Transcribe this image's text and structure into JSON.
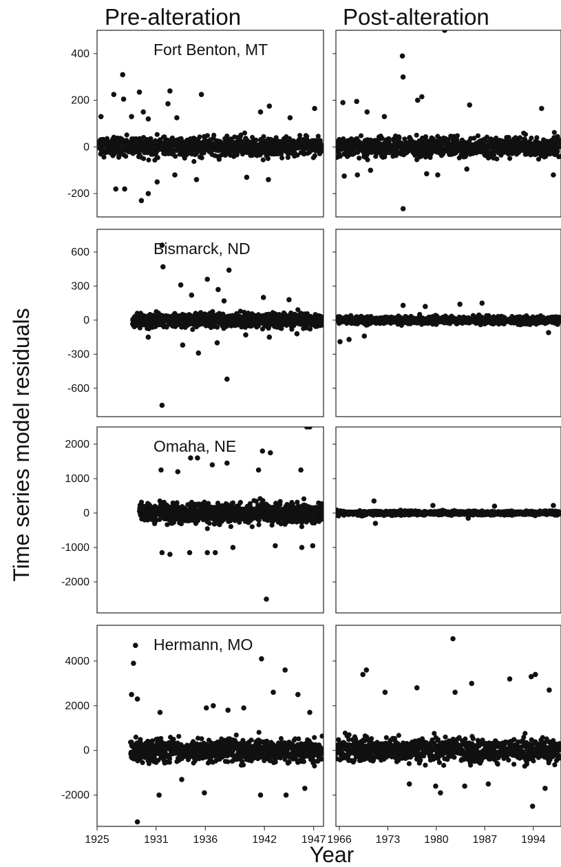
{
  "figure": {
    "left_title": "Pre-alteration",
    "right_title": "Post-alteration",
    "ylabel": "Time series model residuals",
    "xlabel": "Year"
  },
  "chart_data": [
    {
      "type": "scatter",
      "panel": "Fort Benton, MT (pre-alteration)",
      "station": "Fort Benton, MT",
      "period": "Pre-alteration",
      "xlim": [
        1925,
        1948
      ],
      "xticks": [],
      "ylim": [
        -300,
        500
      ],
      "yticks": [
        400,
        200,
        0,
        -200
      ],
      "data_range": [
        1925.2,
        1947.9
      ],
      "spread": 50,
      "outliers": [
        [
          1925.4,
          130
        ],
        [
          1926.7,
          225
        ],
        [
          1927.6,
          310
        ],
        [
          1927.7,
          205
        ],
        [
          1928.5,
          130
        ],
        [
          1929.3,
          235
        ],
        [
          1929.7,
          150
        ],
        [
          1930.2,
          120
        ],
        [
          1932.2,
          185
        ],
        [
          1932.4,
          240
        ],
        [
          1933.1,
          125
        ],
        [
          1935.6,
          225
        ],
        [
          1941.6,
          150
        ],
        [
          1942.5,
          175
        ],
        [
          1944.6,
          125
        ],
        [
          1947.1,
          165
        ],
        [
          1926.9,
          -180
        ],
        [
          1927.8,
          -180
        ],
        [
          1929.5,
          -230
        ],
        [
          1930.2,
          -200
        ],
        [
          1931.1,
          -150
        ],
        [
          1932.9,
          -120
        ],
        [
          1935.1,
          -140
        ],
        [
          1940.2,
          -130
        ],
        [
          1942.4,
          -140
        ]
      ]
    },
    {
      "type": "scatter",
      "panel": "Fort Benton, MT (post-alteration)",
      "station": "",
      "period": "Post-alteration",
      "xlim": [
        1965.5,
        1998
      ],
      "xticks": [],
      "ylim": [
        -300,
        500
      ],
      "yticks": [],
      "data_range": [
        1965.5,
        1997.9
      ],
      "spread": 50,
      "outliers": [
        [
          1966.5,
          190
        ],
        [
          1968.5,
          195
        ],
        [
          1970,
          150
        ],
        [
          1972.5,
          130
        ],
        [
          1975.1,
          390
        ],
        [
          1975.2,
          300
        ],
        [
          1977.3,
          200
        ],
        [
          1977.9,
          215
        ],
        [
          1981.2,
          500
        ],
        [
          1984.8,
          180
        ],
        [
          1995.2,
          165
        ],
        [
          1975.2,
          -265
        ],
        [
          1966.7,
          -125
        ],
        [
          1968.6,
          -120
        ],
        [
          1970.5,
          -100
        ],
        [
          1978.6,
          -115
        ],
        [
          1980.2,
          -120
        ],
        [
          1996.9,
          -120
        ],
        [
          1984.4,
          -95
        ]
      ]
    },
    {
      "type": "scatter",
      "panel": "Bismarck, ND (pre-alteration)",
      "station": "Bismarck, ND",
      "period": "Pre-alteration",
      "xlim": [
        1925,
        1948
      ],
      "xticks": [],
      "ylim": [
        -850,
        800
      ],
      "yticks": [
        600,
        300,
        0,
        -300,
        -600
      ],
      "data_range": [
        1928.6,
        1947.9
      ],
      "spread": 70,
      "outliers": [
        [
          1931.6,
          660
        ],
        [
          1931.7,
          470
        ],
        [
          1936.2,
          360
        ],
        [
          1937.3,
          270
        ],
        [
          1938.4,
          440
        ],
        [
          1933.5,
          310
        ],
        [
          1934.6,
          220
        ],
        [
          1937.9,
          170
        ],
        [
          1941.9,
          200
        ],
        [
          1944.5,
          180
        ],
        [
          1931.6,
          -750
        ],
        [
          1938.2,
          -520
        ],
        [
          1935.3,
          -290
        ],
        [
          1933.7,
          -220
        ],
        [
          1937.2,
          -200
        ],
        [
          1930.2,
          -150
        ],
        [
          1940.1,
          -130
        ],
        [
          1942.5,
          -150
        ],
        [
          1945.3,
          -120
        ]
      ]
    },
    {
      "type": "scatter",
      "panel": "Bismarck, ND (post-alteration)",
      "station": "",
      "period": "Post-alteration",
      "xlim": [
        1965.5,
        1998
      ],
      "xticks": [],
      "ylim": [
        -850,
        800
      ],
      "yticks": [],
      "data_range": [
        1965.5,
        1997.9
      ],
      "spread": 40,
      "outliers": [
        [
          1966.1,
          -190
        ],
        [
          1967.4,
          -170
        ],
        [
          1969.6,
          -140
        ],
        [
          1975.2,
          130
        ],
        [
          1978.4,
          120
        ],
        [
          1983.4,
          140
        ],
        [
          1986.6,
          150
        ],
        [
          1996.2,
          -110
        ]
      ]
    },
    {
      "type": "scatter",
      "panel": "Omaha, NE (pre-alteration)",
      "station": "Omaha, NE",
      "period": "Pre-alteration",
      "xlim": [
        1925,
        1948
      ],
      "xticks": [],
      "ylim": [
        -2900,
        2500
      ],
      "yticks": [
        2000,
        1000,
        0,
        -1000,
        -2000
      ],
      "data_range": [
        1929.3,
        1947.9
      ],
      "spread": 350,
      "outliers": [
        [
          1931.5,
          1250
        ],
        [
          1934.5,
          1600
        ],
        [
          1935.2,
          1600
        ],
        [
          1936.7,
          1400
        ],
        [
          1938.2,
          1450
        ],
        [
          1941.8,
          1800
        ],
        [
          1942.6,
          1750
        ],
        [
          1946.3,
          2500
        ],
        [
          1946.6,
          2500
        ],
        [
          1941.4,
          1250
        ],
        [
          1945.7,
          1250
        ],
        [
          1933.2,
          1200
        ],
        [
          1942.2,
          -2500
        ],
        [
          1931.6,
          -1150
        ],
        [
          1932.4,
          -1200
        ],
        [
          1934.4,
          -1150
        ],
        [
          1936.2,
          -1150
        ],
        [
          1937,
          -1150
        ],
        [
          1938.8,
          -1000
        ],
        [
          1943.1,
          -950
        ],
        [
          1945.8,
          -1000
        ],
        [
          1946.9,
          -950
        ]
      ]
    },
    {
      "type": "scatter",
      "panel": "Omaha, NE (post-alteration)",
      "station": "",
      "period": "Post-alteration",
      "xlim": [
        1965.5,
        1998
      ],
      "xticks": [],
      "ylim": [
        -2900,
        2500
      ],
      "yticks": [],
      "data_range": [
        1965.5,
        1997.9
      ],
      "spread": 70,
      "outliers": [
        [
          1971,
          350
        ],
        [
          1971.2,
          -300
        ],
        [
          1979.5,
          220
        ],
        [
          1988.4,
          200
        ],
        [
          1996.9,
          220
        ],
        [
          1984.6,
          -150
        ]
      ]
    },
    {
      "type": "scatter",
      "panel": "Hermann, MO (pre-alteration)",
      "station": "Hermann, MO",
      "period": "Pre-alteration",
      "xlim": [
        1925,
        1948
      ],
      "xticks": [
        1925,
        1931,
        1936,
        1942,
        1947
      ],
      "ylim": [
        -3400,
        5600
      ],
      "yticks": [
        4000,
        2000,
        0,
        -2000
      ],
      "data_range": [
        1928.4,
        1947.9
      ],
      "spread": 600,
      "outliers": [
        [
          1928.9,
          4700
        ],
        [
          1928.7,
          3900
        ],
        [
          1928.5,
          2500
        ],
        [
          1929.1,
          2300
        ],
        [
          1931.4,
          1700
        ],
        [
          1936.1,
          1900
        ],
        [
          1936.8,
          2000
        ],
        [
          1938.3,
          1800
        ],
        [
          1939.9,
          1900
        ],
        [
          1941.7,
          4100
        ],
        [
          1942.9,
          2600
        ],
        [
          1944.1,
          3600
        ],
        [
          1945.4,
          2500
        ],
        [
          1946.6,
          1700
        ],
        [
          1929.1,
          -3200
        ],
        [
          1931.3,
          -2000
        ],
        [
          1935.9,
          -1900
        ],
        [
          1941.6,
          -2000
        ],
        [
          1944.2,
          -2000
        ],
        [
          1946.1,
          -1700
        ],
        [
          1933.6,
          -1300
        ]
      ]
    },
    {
      "type": "scatter",
      "panel": "Hermann, MO (post-alteration)",
      "station": "",
      "period": "Post-alteration",
      "xlim": [
        1965.5,
        1998
      ],
      "xticks": [
        1966,
        1973,
        1980,
        1987,
        1994
      ],
      "ylim": [
        -3400,
        5600
      ],
      "yticks": [],
      "data_range": [
        1965.5,
        1997.9
      ],
      "spread": 650,
      "outliers": [
        [
          1982.4,
          5000
        ],
        [
          1969.4,
          3400
        ],
        [
          1969.9,
          3600
        ],
        [
          1972.6,
          2600
        ],
        [
          1977.2,
          2800
        ],
        [
          1982.7,
          2600
        ],
        [
          1985.1,
          3000
        ],
        [
          1990.6,
          3200
        ],
        [
          1993.7,
          3300
        ],
        [
          1994.3,
          3400
        ],
        [
          1996.3,
          2700
        ],
        [
          1993.9,
          -2500
        ],
        [
          1980.6,
          -1900
        ],
        [
          1979.9,
          -1600
        ],
        [
          1984.1,
          -1600
        ],
        [
          1987.5,
          -1500
        ],
        [
          1976.1,
          -1500
        ],
        [
          1995.7,
          -1700
        ]
      ]
    }
  ]
}
